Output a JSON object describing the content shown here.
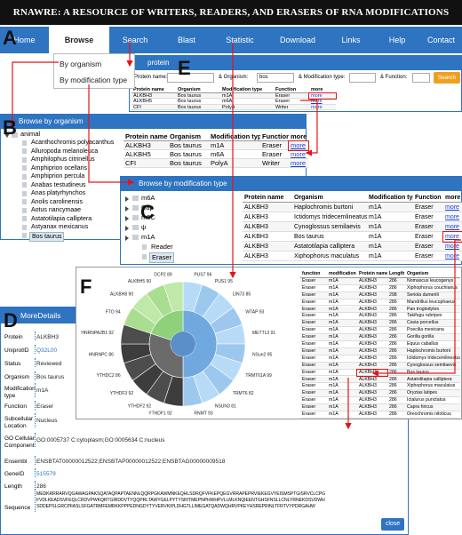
{
  "header": {
    "title": "RNAWRE: A RESOURCE OF WRITERS, READERS, AND ERASERS OF RNA MODIFICATIONS"
  },
  "panel_letters": [
    "A",
    "B",
    "C",
    "D",
    "E",
    "F"
  ],
  "nav": [
    "Home",
    "Browse",
    "Search",
    "Blast",
    "Statistic",
    "Download",
    "Links",
    "Help",
    "Contact"
  ],
  "browse_menu": [
    "By organism",
    "By modification type"
  ],
  "search_panel": {
    "header": "protein",
    "labels": [
      "Protein name:",
      "& Organism:",
      "& Modification type:",
      "& Function:"
    ],
    "organism_input": "bos",
    "button": "Search",
    "table": {
      "columns": [
        "Protein name",
        "Organism",
        "Modification type",
        "Function",
        "more"
      ],
      "rows": [
        [
          "ALKBH3",
          "Bos taurus",
          "m1A",
          "Eraser",
          "more"
        ],
        [
          "ALKBH5",
          "Bos taurus",
          "m6A",
          "Eraser",
          "more"
        ],
        [
          "CFI",
          "Bos taurus",
          "PolyA",
          "Writer",
          "more"
        ]
      ]
    }
  },
  "organism_panel": {
    "header": "Browse by organism",
    "tree_root": "animal",
    "tree_items": [
      "Acanthochromis polyacanthus",
      "Alluropoda melanoleuca",
      "Amphilophus citrinellus",
      "Amphiprion ocellaris",
      "Amphiprion percula",
      "Anabas testudineus",
      "Anas platyrhynchos",
      "Anolis carolinensis",
      "Aotus nancymaae",
      "Astatotilapia calliptera",
      "Astyanax mexicanus",
      "Bos taurus"
    ],
    "table": {
      "columns": [
        "Protein name",
        "Organism",
        "Modification type",
        "Function",
        "more"
      ],
      "rows": [
        [
          "ALKBH3",
          "Bos taurus",
          "m1A",
          "Eraser",
          "more"
        ],
        [
          "ALKBH5",
          "Bos taurus",
          "m6A",
          "Eraser",
          "more"
        ],
        [
          "CFI",
          "Bos taurus",
          "PolyA",
          "Writer",
          "more"
        ]
      ]
    }
  },
  "modification_panel": {
    "header": "Browse by modification type",
    "tree_items": [
      "m6A",
      "Cap",
      "m5C",
      "ψ",
      "m1A"
    ],
    "sub_items": [
      "Reader",
      "Eraser"
    ],
    "table": {
      "columns": [
        "Protein name",
        "Organism",
        "Modification type",
        "Function",
        "more"
      ],
      "rows": [
        [
          "ALKBH3",
          "Haplochromis burtoni",
          "m1A",
          "Eraser",
          "more"
        ],
        [
          "ALKBH3",
          "Ictidomys tridecemlineatus",
          "m1A",
          "Eraser",
          "more"
        ],
        [
          "ALKBH3",
          "Cynoglossus semilaevis",
          "m1A",
          "Eraser",
          "more"
        ],
        [
          "ALKBH3",
          "Bos taurus",
          "m1A",
          "Eraser",
          "more"
        ],
        [
          "ALKBH3",
          "Astatotilapia calliptera",
          "m1A",
          "Eraser",
          "more"
        ],
        [
          "ALKBH3",
          "Xiphophorus maculatus",
          "m1A",
          "Eraser",
          "more"
        ]
      ]
    }
  },
  "statistic_panel": {
    "sunburst_labels": [
      "PUS7 96",
      "PUS1 95",
      "LIN73 85",
      "WTAP 93",
      "METTL3 91",
      "NSun2 95",
      "TRMT61A 99",
      "TRMT6 82",
      "NSUN3 81",
      "RNMT 93",
      "YTHDF1 92",
      "YTHDF2 92",
      "YTHDF3 92",
      "YTHDC2 86",
      "HNRNPC 86",
      "HNRNPA2B1 92",
      "FTO 94",
      "ALKBH8 90",
      "ALKBH5 90",
      "DCP2 89"
    ],
    "table": {
      "columns": [
        "function",
        "modification",
        "Protein name",
        "Length",
        "Organism"
      ],
      "rows": [
        [
          "Eraser",
          "m1A",
          "ALKBH3",
          286,
          "Nomascus leucogenys"
        ],
        [
          "Eraser",
          "m1A",
          "ALKBH3",
          286,
          "Xiphophorus couchianus"
        ],
        [
          "Eraser",
          "m1A",
          "ALKBH3",
          298,
          "Seriola dumerili"
        ],
        [
          "Eraser",
          "m1A",
          "ALKBH3",
          286,
          "Mandrillus leucophaeus"
        ],
        [
          "Eraser",
          "m1A",
          "ALKBH3",
          286,
          "Pan troglodytes"
        ],
        [
          "Eraser",
          "m1A",
          "ALKBH3",
          286,
          "Takifugu rubripes"
        ],
        [
          "Eraser",
          "m1A",
          "ALKBH3",
          286,
          "Cavia porcellus"
        ],
        [
          "Eraser",
          "m1A",
          "ALKBH3",
          286,
          "Poecilia mexicana"
        ],
        [
          "Eraser",
          "m1A",
          "ALKBH3",
          286,
          "Gorilla gorilla"
        ],
        [
          "Eraser",
          "m1A",
          "ALKBH3",
          286,
          "Equus caballus"
        ],
        [
          "Eraser",
          "m1A",
          "ALKBH3",
          286,
          "Haplochromis burtoni"
        ],
        [
          "Eraser",
          "m1A",
          "ALKBH3",
          286,
          "Ictidomys tridecemlineatus"
        ],
        [
          "Eraser",
          "m1A",
          "ALKBH3",
          286,
          "Cynoglossus semilaevis"
        ],
        [
          "Eraser",
          "m1A",
          "ALKBH3",
          286,
          "Bos taurus"
        ],
        [
          "Eraser",
          "m1A",
          "ALKBH3",
          286,
          "Astatotilapia calliptera"
        ],
        [
          "Eraser",
          "m1A",
          "ALKBH3",
          286,
          "Xiphophorus maculatus"
        ],
        [
          "Eraser",
          "m1A",
          "ALKBH3",
          286,
          "Oryzias latipes"
        ],
        [
          "Eraser",
          "m1A",
          "ALKBH3",
          286,
          "Ictalurus punctatus"
        ],
        [
          "Eraser",
          "m1A",
          "ALKBH3",
          286,
          "Capra hircus"
        ],
        [
          "Eraser",
          "m1A",
          "ALKBH3",
          286,
          "Oreochromis niloticus"
        ]
      ]
    }
  },
  "details_panel": {
    "header": "MoreDetails",
    "fields": [
      [
        "Protein",
        "ALKBH3"
      ],
      [
        "UniprotID",
        "Q32L00"
      ],
      [
        "Status",
        "Reviewed"
      ],
      [
        "Organism",
        "Bos taurus"
      ],
      [
        "Modification type",
        "m1A"
      ],
      [
        "Function",
        "Eraser"
      ],
      [
        "Subcellular Location",
        "Nucleus"
      ],
      [
        "GO Cellular Component",
        "GO:0005737 C:cytoplasm;GO:0005634 C:nucleus"
      ],
      [
        "Ensembl",
        "ENSBTAT00000012522;ENSBTAP00000012522;ENSBTAG00000009518"
      ],
      [
        "GeneID",
        "515579"
      ],
      [
        "Length",
        "286"
      ]
    ],
    "sequence_label": "Sequence",
    "sequence": [
      "MEDKRRRARVQGAWAGPAKSQATAQPAPTAENNLQQRPGKAWMNKEQHLSDRQFVFKEPQEGVRRAPEPRVIEKEGVYEISMSPTGISRVCLCPG",
      "FVDLKEADSVFEQLCRDVPWKQRTGIRDDVTYQQPRLTAWYGELPYTYSRITMEPNPHWHPVLLMLKNQIEENTGHSFNSLLCNLYRNEKDSVDWH",
      "SDDEPSLGRCPIIASLSFGATRMFEMRKKPPPEDNGDYTYVERVKIPLDHGTLLIMEGATQADWQHRVPKEYHSREPRINLTFRTVYPDRGAHW"
    ],
    "close": "close"
  }
}
